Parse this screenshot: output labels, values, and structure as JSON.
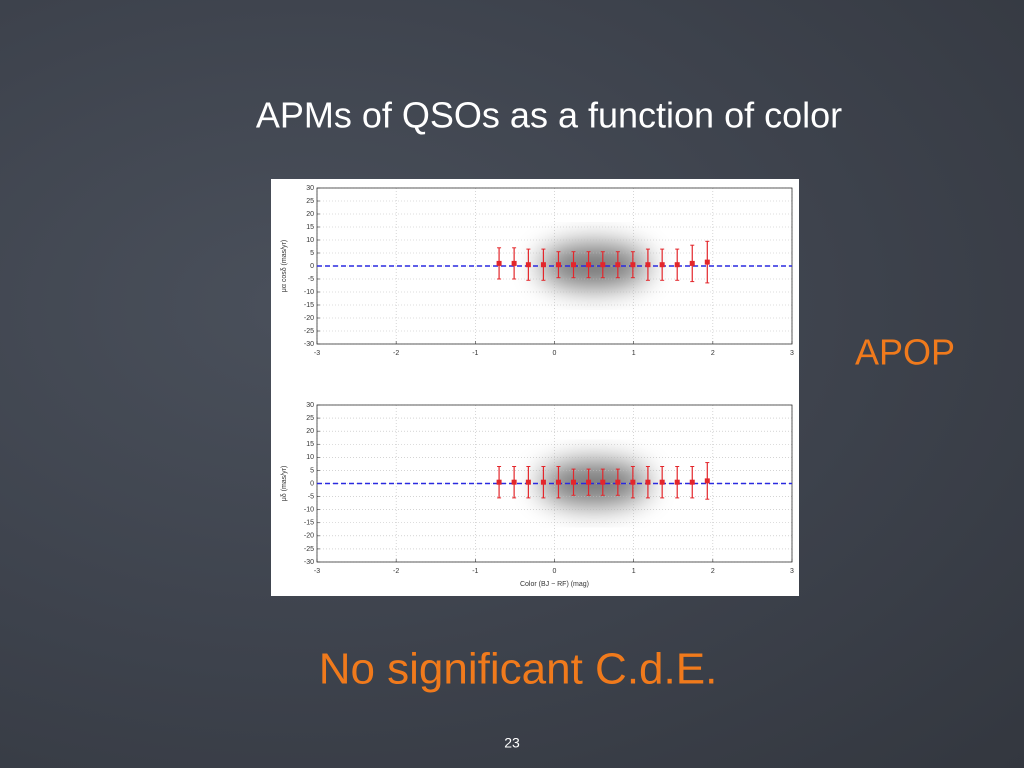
{
  "title": "APMs of QSOs as a function of color",
  "annotation": "APOP",
  "conclusion": "No significant C.d.E.",
  "page_number": "23",
  "chart_data": [
    {
      "type": "errorbar",
      "ylabel": "μα cosδ (mas/yr)",
      "x": [
        -0.7,
        -0.51,
        -0.33,
        -0.14,
        0.05,
        0.24,
        0.43,
        0.61,
        0.8,
        0.99,
        1.18,
        1.36,
        1.55,
        1.74,
        1.93
      ],
      "series": [
        {
          "color": "#e3262b",
          "values": [
            1,
            1,
            0.5,
            0.5,
            0.5,
            0.5,
            0.5,
            0.5,
            0.5,
            0.5,
            0.5,
            0.5,
            0.5,
            1,
            1.5
          ],
          "errors": [
            6,
            6,
            6,
            6,
            5,
            5,
            5,
            5,
            5,
            5,
            6,
            6,
            6,
            7,
            8
          ]
        }
      ],
      "hline": {
        "value": 0,
        "color": "#2a2ae0"
      },
      "xlim": [
        -3,
        3
      ],
      "xticks": [
        -3,
        -2,
        -1,
        0,
        1,
        2,
        3
      ],
      "ylim": [
        -30,
        30
      ],
      "yticks": [
        -30,
        -25,
        -20,
        -15,
        -10,
        -5,
        0,
        5,
        10,
        15,
        20,
        25,
        30
      ],
      "grid": true
    },
    {
      "type": "errorbar",
      "ylabel": "μδ (mas/yr)",
      "xlabel": "Color (BJ − RF) (mag)",
      "x": [
        -0.7,
        -0.51,
        -0.33,
        -0.14,
        0.05,
        0.24,
        0.43,
        0.61,
        0.8,
        0.99,
        1.18,
        1.36,
        1.55,
        1.74,
        1.93
      ],
      "series": [
        {
          "color": "#e3262b",
          "values": [
            0.5,
            0.5,
            0.5,
            0.5,
            0.5,
            0.5,
            0.5,
            0.5,
            0.5,
            0.5,
            0.5,
            0.5,
            0.5,
            0.5,
            1
          ],
          "errors": [
            6,
            6,
            6,
            6,
            6,
            5,
            5,
            5,
            5,
            6,
            6,
            6,
            6,
            6,
            7
          ]
        }
      ],
      "hline": {
        "value": 0,
        "color": "#2a2ae0"
      },
      "xlim": [
        -3,
        3
      ],
      "xticks": [
        -3,
        -2,
        -1,
        0,
        1,
        2,
        3
      ],
      "ylim": [
        -30,
        30
      ],
      "yticks": [
        -30,
        -25,
        -20,
        -15,
        -10,
        -5,
        0,
        5,
        10,
        15,
        20,
        25,
        30
      ],
      "grid": true
    }
  ]
}
